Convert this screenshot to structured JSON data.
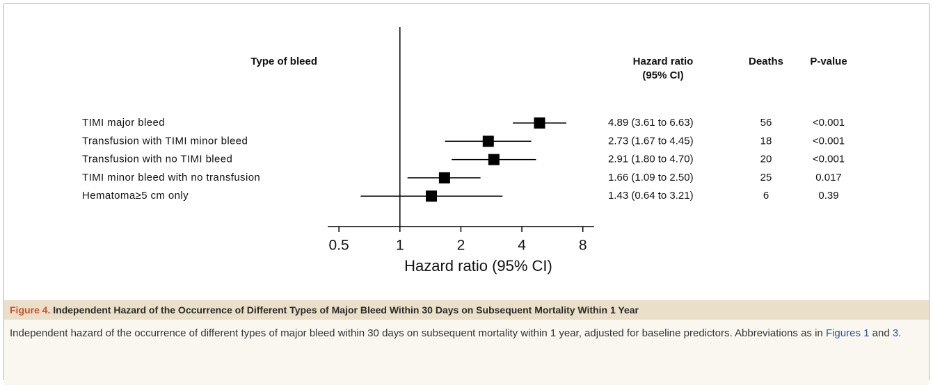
{
  "chart_data": {
    "type": "forest",
    "row_header": "Type of bleed",
    "categories": [
      "TIMI major bleed",
      "Transfusion with TIMI minor bleed",
      "Transfusion with no TIMI bleed",
      "TIMI minor bleed with no transfusion",
      "Hematoma≥5 cm only"
    ],
    "estimate": [
      4.89,
      2.73,
      2.91,
      1.66,
      1.43
    ],
    "lower": [
      3.61,
      1.67,
      1.8,
      1.09,
      0.64
    ],
    "upper": [
      6.63,
      4.45,
      4.7,
      2.5,
      3.21
    ],
    "color": "#000000",
    "xscale": "log",
    "xlim": [
      0.44,
      9.1
    ],
    "xticks": [
      0.5,
      1,
      2,
      4,
      8
    ],
    "reference_line": 1,
    "xlabel": "Hazard ratio (95% CI)",
    "hr_header": [
      "Hazard ratio",
      "(95% CI)"
    ],
    "hr_text": [
      "4.89 (3.61 to 6.63)",
      "2.73 (1.67 to 4.45)",
      "2.91 (1.80 to 4.70)",
      "1.66 (1.09 to 2.50)",
      "1.43 (0.64 to 3.21)"
    ],
    "deaths_header": "Deaths",
    "deaths": [
      56,
      18,
      20,
      25,
      6
    ],
    "p_header": "P-value",
    "p_values": [
      "<0.001",
      "<0.001",
      "<0.001",
      "0.017",
      "0.39"
    ]
  },
  "caption": {
    "label": "Figure 4.",
    "title": "Independent Hazard of the Occurrence of Different Types of Major Bleed Within 30 Days on Subsequent Mortality Within 1 Year",
    "description": [
      "Independent hazard of the occurrence of different types of major bleed within 30 days on subsequent mortality within 1 year, adjusted for baseline predictors. Abbreviations as in ",
      "Figures 1",
      " and ",
      "3",
      "."
    ]
  }
}
